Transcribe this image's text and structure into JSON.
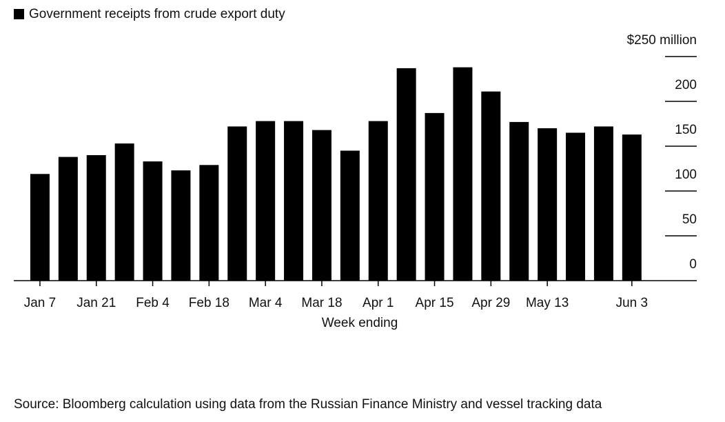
{
  "chart_data": {
    "type": "bar",
    "source": "Source: Bloomberg calculation using data from the Russian Finance Ministry and vessel tracking data",
    "x_label": "Week ending",
    "categories": [
      "Jan 7",
      null,
      "Jan 21",
      null,
      "Feb 4",
      null,
      "Feb 18",
      null,
      "Mar 4",
      null,
      "Mar 18",
      null,
      "Apr 1",
      null,
      "Apr 15",
      null,
      "Apr 29",
      null,
      "May 13",
      null,
      null,
      "Jun 3"
    ],
    "series": [
      {
        "name": "Government receipts from crude export duty",
        "color": "#000000",
        "values": [
          119,
          138,
          140,
          153,
          133,
          123,
          129,
          172,
          178,
          178,
          168,
          145,
          178,
          237,
          187,
          238,
          211,
          177,
          170,
          165,
          172,
          163
        ]
      }
    ],
    "ylim": [
      0,
      250
    ],
    "yticks": [
      0,
      50,
      100,
      150,
      200,
      {
        "value": 250,
        "label": "$250 million"
      }
    ],
    "grid": true
  }
}
